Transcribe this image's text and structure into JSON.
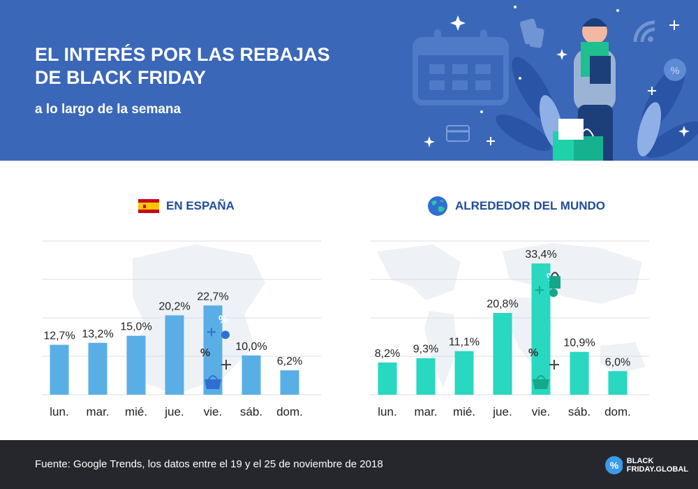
{
  "header": {
    "title_line1": "EL INTERÉS POR LAS REBAJAS",
    "title_line2": "DE BLACK FRIDAY",
    "subtitle": "a lo largo de la semana"
  },
  "colors": {
    "header_bg": "#3a67b8",
    "spain_bar": "#5aaee6",
    "world_bar": "#28d8c0",
    "footer_bg": "#25272d",
    "heading_text": "#1f4c9a"
  },
  "chart_data": [
    {
      "type": "bar",
      "title": "EN ESPAÑA",
      "icon": "spain-flag-icon",
      "categories": [
        "lun.",
        "mar.",
        "mié.",
        "jue.",
        "vie.",
        "sáb.",
        "dom."
      ],
      "values": [
        12.7,
        13.2,
        15.0,
        20.2,
        22.7,
        10.0,
        6.2
      ],
      "labels": [
        "12,7%",
        "13,2%",
        "15,0%",
        "20,2%",
        "22,7%",
        "10,0%",
        "6,2%"
      ],
      "ylim": [
        0,
        40
      ],
      "grid": true,
      "highlight": "vie.",
      "color": "#5aaee6"
    },
    {
      "type": "bar",
      "title": "ALREDEDOR DEL MUNDO",
      "icon": "globe-icon",
      "categories": [
        "lun.",
        "mar.",
        "mié.",
        "jue.",
        "vie.",
        "sáb.",
        "dom."
      ],
      "values": [
        8.2,
        9.3,
        11.1,
        20.8,
        33.4,
        10.9,
        6.0
      ],
      "labels": [
        "8,2%",
        "9,3%",
        "11,1%",
        "20,8%",
        "33,4%",
        "10,9%",
        "6,0%"
      ],
      "ylim": [
        0,
        40
      ],
      "grid": true,
      "highlight": "vie.",
      "color": "#28d8c0"
    }
  ],
  "footer": {
    "source": "Fuente: Google Trends, los datos entre el 19 y el 25 de noviembre de 2018",
    "logo_line1": "BLACK",
    "logo_line2": "FRIDAY.GLOBAL"
  }
}
